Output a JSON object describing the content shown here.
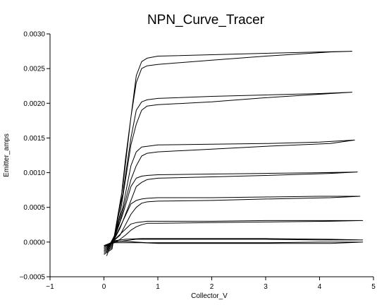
{
  "chart_data": {
    "type": "line",
    "title": "NPN_Curve_Tracer",
    "xlabel": "Collector_V",
    "ylabel": "Emitter_amps",
    "xlim": [
      -1,
      5
    ],
    "ylim": [
      -0.0005,
      0.003
    ],
    "grid": false,
    "legend": "none",
    "x_ticks": [
      {
        "value": -1,
        "label": "−1"
      },
      {
        "value": 0,
        "label": "0"
      },
      {
        "value": 1,
        "label": "1"
      },
      {
        "value": 2,
        "label": "2"
      },
      {
        "value": 3,
        "label": "3"
      },
      {
        "value": 4,
        "label": "4"
      },
      {
        "value": 5,
        "label": "5"
      }
    ],
    "y_ticks": [
      {
        "value": -0.0005,
        "label": "−0.0005"
      },
      {
        "value": 0.0,
        "label": "0.0000"
      },
      {
        "value": 0.0005,
        "label": "0.0005"
      },
      {
        "value": 0.001,
        "label": "0.0010"
      },
      {
        "value": 0.0015,
        "label": "0.0015"
      },
      {
        "value": 0.002,
        "label": "0.0020"
      },
      {
        "value": 0.0025,
        "label": "0.0025"
      },
      {
        "value": 0.003,
        "label": "0.0030"
      }
    ],
    "line_color": "#000000",
    "series": [
      {
        "x": [
          0.0,
          0.15,
          0.35,
          0.5,
          0.6,
          0.7,
          0.8,
          1.0,
          2.0,
          3.0,
          4.0,
          4.6,
          4.2,
          3.0,
          2.0,
          1.0,
          0.8,
          0.7,
          0.6,
          0.5,
          0.4,
          0.3,
          0.2,
          0.05
        ],
        "y": [
          -0.00018,
          -0.0001,
          0.0008,
          0.0018,
          0.0024,
          0.0026,
          0.00265,
          0.00268,
          0.0027,
          0.00272,
          0.00274,
          0.00275,
          0.00274,
          0.00268,
          0.00262,
          0.00256,
          0.00254,
          0.0025,
          0.0023,
          0.0018,
          0.0012,
          0.0005,
          0.0001,
          -0.0002
        ]
      },
      {
        "x": [
          0.0,
          0.15,
          0.35,
          0.5,
          0.6,
          0.7,
          0.8,
          1.0,
          2.0,
          3.0,
          4.0,
          4.6,
          4.2,
          3.0,
          2.0,
          1.0,
          0.8,
          0.7,
          0.6,
          0.5,
          0.4,
          0.3,
          0.2,
          0.05
        ],
        "y": [
          -0.00016,
          -8e-05,
          0.0007,
          0.0015,
          0.0019,
          0.00202,
          0.00205,
          0.00207,
          0.0021,
          0.00212,
          0.00214,
          0.00216,
          0.00214,
          0.00208,
          0.00202,
          0.00198,
          0.00196,
          0.0019,
          0.0017,
          0.0014,
          0.0009,
          0.0004,
          0.0001,
          -0.00015
        ]
      },
      {
        "x": [
          0.0,
          0.15,
          0.35,
          0.5,
          0.6,
          0.7,
          0.8,
          1.0,
          2.0,
          3.0,
          4.0,
          4.65,
          4.2,
          3.0,
          2.0,
          1.0,
          0.8,
          0.7,
          0.6,
          0.5,
          0.4,
          0.3,
          0.2,
          0.05
        ],
        "y": [
          -0.00014,
          -6e-05,
          0.0005,
          0.0011,
          0.0013,
          0.00137,
          0.00138,
          0.0014,
          0.00141,
          0.00142,
          0.00144,
          0.00147,
          0.00142,
          0.00138,
          0.00134,
          0.0013,
          0.00128,
          0.00124,
          0.0011,
          0.0009,
          0.0006,
          0.0003,
          0.0001,
          -0.00012
        ]
      },
      {
        "x": [
          0.0,
          0.15,
          0.35,
          0.5,
          0.6,
          0.7,
          0.8,
          1.0,
          2.0,
          3.0,
          4.0,
          4.7,
          4.2,
          3.0,
          2.0,
          1.0,
          0.8,
          0.7,
          0.6,
          0.5,
          0.4,
          0.3,
          0.2,
          0.05
        ],
        "y": [
          -0.00012,
          -4e-05,
          0.0004,
          0.0008,
          0.00092,
          0.00095,
          0.00096,
          0.00097,
          0.00098,
          0.00099,
          0.001,
          0.00101,
          0.00099,
          0.00096,
          0.00094,
          0.00092,
          0.0009,
          0.00086,
          0.0008,
          0.0006,
          0.0004,
          0.0002,
          5e-05,
          -0.0001
        ]
      },
      {
        "x": [
          0.0,
          0.15,
          0.35,
          0.5,
          0.6,
          0.7,
          0.8,
          1.0,
          2.0,
          3.0,
          4.0,
          4.75,
          4.2,
          3.0,
          2.0,
          1.0,
          0.8,
          0.7,
          0.6,
          0.5,
          0.4,
          0.3,
          0.2,
          0.05
        ],
        "y": [
          -0.0001,
          -2e-05,
          0.0003,
          0.00055,
          0.0006,
          0.00062,
          0.00063,
          0.00064,
          0.00064,
          0.00065,
          0.00066,
          0.00066,
          0.00064,
          0.00062,
          0.0006,
          0.00059,
          0.00058,
          0.00056,
          0.0005,
          0.0004,
          0.00025,
          0.0001,
          3e-05,
          -8e-05
        ]
      },
      {
        "x": [
          0.0,
          0.15,
          0.35,
          0.5,
          0.6,
          0.7,
          0.8,
          1.0,
          2.0,
          3.0,
          4.0,
          4.8,
          4.2,
          3.0,
          2.0,
          1.0,
          0.8,
          0.7,
          0.6,
          0.5,
          0.4,
          0.3,
          0.2,
          0.05
        ],
        "y": [
          -8e-05,
          0.0,
          0.00015,
          0.00026,
          0.00028,
          0.00029,
          0.0003,
          0.0003,
          0.0003,
          0.00031,
          0.00031,
          0.00031,
          0.0003,
          0.00029,
          0.00028,
          0.00027,
          0.00027,
          0.00025,
          0.00022,
          0.00017,
          0.0001,
          4e-05,
          0.0,
          -6e-05
        ]
      },
      {
        "x": [
          0.0,
          0.2,
          0.4,
          0.6,
          0.8,
          1.0,
          2.0,
          3.0,
          4.0,
          4.8,
          4.2,
          3.0,
          2.0,
          1.0,
          0.7,
          0.4,
          0.2,
          0.05
        ],
        "y": [
          -6e-05,
          0.0,
          2e-05,
          4e-05,
          4e-05,
          4e-05,
          4e-05,
          4e-05,
          3e-05,
          3e-05,
          4e-05,
          5e-05,
          5e-05,
          5e-05,
          5e-05,
          4e-05,
          2e-05,
          -4e-05
        ]
      },
      {
        "x": [
          0.0,
          0.2,
          0.4,
          0.6,
          0.8,
          1.0,
          2.0,
          3.0,
          4.0,
          4.8,
          4.2,
          3.0,
          2.0,
          1.0,
          0.7,
          0.4,
          0.2,
          0.05
        ],
        "y": [
          -5e-05,
          1e-05,
          1e-05,
          0.0,
          -1e-05,
          -1e-05,
          -1e-05,
          -1e-05,
          0.0,
          0.0,
          -2e-05,
          -2e-05,
          -2e-05,
          -2e-05,
          -1e-05,
          -1e-05,
          -1e-05,
          -4e-05
        ]
      }
    ]
  }
}
